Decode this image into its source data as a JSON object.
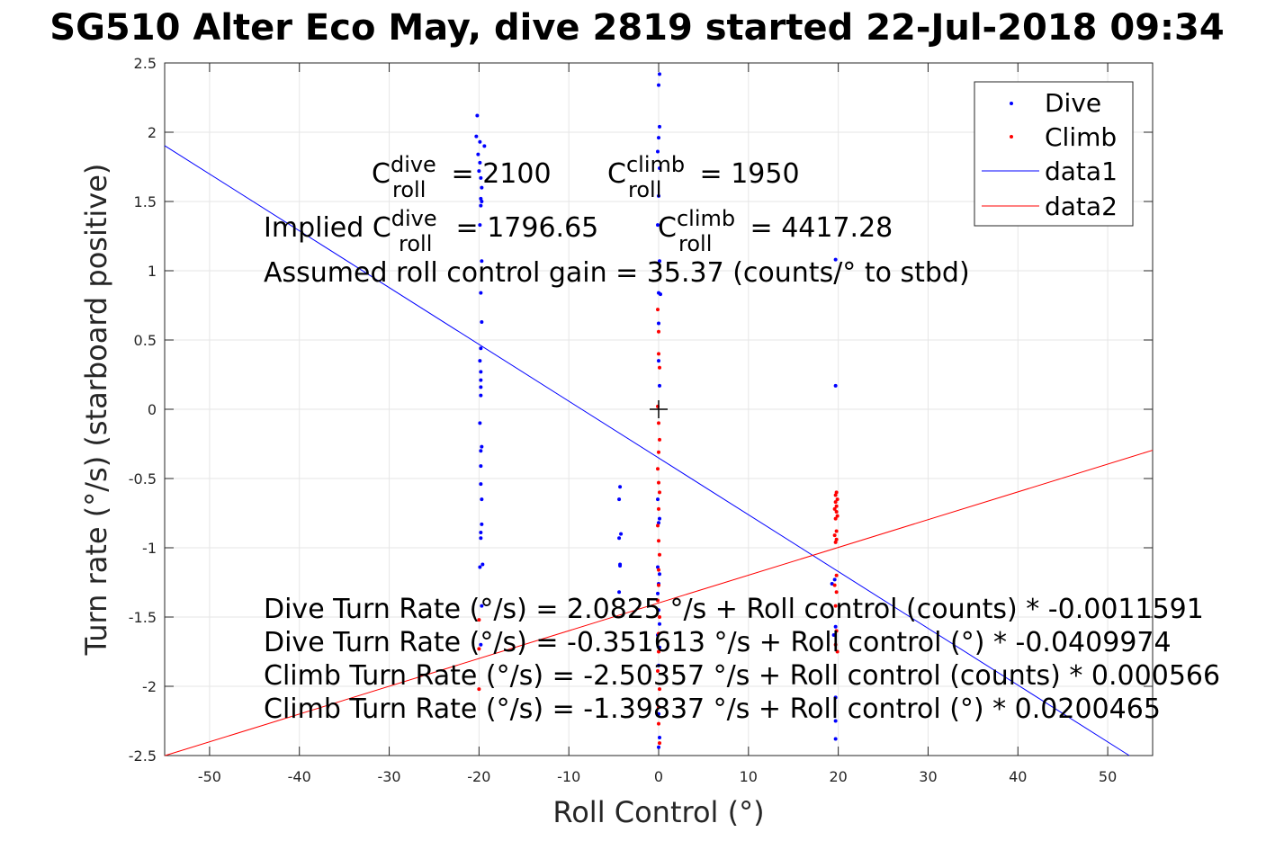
{
  "title": "SG510 Alter Eco May, dive 2819 started 22-Jul-2018 09:34",
  "chart_data": {
    "type": "scatter",
    "xlabel": "Roll Control (°)",
    "ylabel": "Turn rate (°/s) (starboard positive)",
    "xlim": [
      -55,
      55
    ],
    "ylim": [
      -2.5,
      2.5
    ],
    "xticks": [
      "-50",
      "-40",
      "-30",
      "-20",
      "-10",
      "0",
      "10",
      "20",
      "30",
      "40",
      "50"
    ],
    "yticks": [
      "2.5",
      "2",
      "1.5",
      "1",
      "0.5",
      "0",
      "-0.5",
      "-1",
      "-1.5",
      "-2",
      "-2.5"
    ],
    "grid": true,
    "legend_placement": "top-right",
    "legend": [
      "Dive",
      "Climb",
      "data1",
      "data2"
    ],
    "colors": {
      "dive": "#0000ff",
      "climb": "#ff0000",
      "marker": "#000000"
    },
    "series": [
      {
        "name": "Dive",
        "kind": "points",
        "points": [
          [
            -20.2,
            2.12
          ],
          [
            -20.3,
            1.97
          ],
          [
            -19.9,
            1.93
          ],
          [
            -19.4,
            1.9
          ],
          [
            -20.1,
            1.84
          ],
          [
            -19.9,
            1.78
          ],
          [
            -20.0,
            1.72
          ],
          [
            -19.8,
            1.67
          ],
          [
            -19.7,
            1.6
          ],
          [
            -19.8,
            1.52
          ],
          [
            -19.7,
            1.5
          ],
          [
            -19.8,
            1.47
          ],
          [
            -19.9,
            1.33
          ],
          [
            -19.7,
            1.07
          ],
          [
            -19.8,
            0.84
          ],
          [
            -19.7,
            0.63
          ],
          [
            -19.8,
            0.44
          ],
          [
            -19.9,
            0.35
          ],
          [
            -19.8,
            0.27
          ],
          [
            -19.8,
            0.21
          ],
          [
            -19.8,
            0.16
          ],
          [
            -19.8,
            0.1
          ],
          [
            -19.9,
            -0.1
          ],
          [
            -19.7,
            -0.27
          ],
          [
            -19.8,
            -0.3
          ],
          [
            -19.8,
            -0.41
          ],
          [
            -19.8,
            -0.54
          ],
          [
            -19.7,
            -0.65
          ],
          [
            -19.7,
            -0.83
          ],
          [
            -19.8,
            -0.89
          ],
          [
            -19.8,
            -0.93
          ],
          [
            -19.6,
            -1.12
          ],
          [
            -19.9,
            -1.14
          ],
          [
            -19.7,
            -1.42
          ],
          [
            -19.8,
            -1.7
          ],
          [
            -4.3,
            -0.56
          ],
          [
            -4.4,
            -0.65
          ],
          [
            -4.2,
            -0.9
          ],
          [
            -4.4,
            -0.93
          ],
          [
            -4.3,
            -1.12
          ],
          [
            -4.3,
            -1.13
          ],
          [
            -4.4,
            -1.32
          ],
          [
            0.1,
            2.42
          ],
          [
            0.0,
            2.34
          ],
          [
            0.1,
            2.04
          ],
          [
            0.0,
            1.96
          ],
          [
            -0.1,
            1.86
          ],
          [
            0.1,
            1.74
          ],
          [
            0.0,
            1.54
          ],
          [
            -0.1,
            1.33
          ],
          [
            0.1,
            1.07
          ],
          [
            0.0,
            0.84
          ],
          [
            0.2,
            0.83
          ],
          [
            0.0,
            0.62
          ],
          [
            0.0,
            0.35
          ],
          [
            0.1,
            0.17
          ],
          [
            -0.1,
            -0.65
          ],
          [
            0.1,
            -0.79
          ],
          [
            0.0,
            -0.82
          ],
          [
            -0.1,
            -1.14
          ],
          [
            0.1,
            -1.19
          ],
          [
            0.0,
            -1.26
          ],
          [
            -0.1,
            -1.33
          ],
          [
            0.0,
            -1.45
          ],
          [
            0.1,
            -1.55
          ],
          [
            -0.1,
            -1.63
          ],
          [
            0.1,
            -1.72
          ],
          [
            0.0,
            -1.85
          ],
          [
            0.0,
            -2.2
          ],
          [
            0.1,
            -2.37
          ],
          [
            0.0,
            -2.44
          ],
          [
            19.7,
            1.08
          ],
          [
            19.7,
            0.17
          ],
          [
            19.3,
            -1.26
          ],
          [
            19.6,
            -1.23
          ],
          [
            19.7,
            -1.57
          ],
          [
            19.5,
            -1.63
          ],
          [
            19.7,
            -2.08
          ],
          [
            19.7,
            -2.25
          ],
          [
            19.7,
            -2.38
          ]
        ]
      },
      {
        "name": "Climb",
        "kind": "points",
        "points": [
          [
            -20.0,
            -1.52
          ],
          [
            -20.0,
            -1.73
          ],
          [
            -20.0,
            -2.02
          ],
          [
            -0.1,
            0.72
          ],
          [
            0.0,
            0.56
          ],
          [
            0.0,
            0.4
          ],
          [
            0.1,
            0.3
          ],
          [
            -0.1,
            0.02
          ],
          [
            0.0,
            -0.1
          ],
          [
            0.1,
            -0.22
          ],
          [
            0.0,
            -0.31
          ],
          [
            -0.1,
            -0.43
          ],
          [
            0.0,
            -0.53
          ],
          [
            0.1,
            -0.6
          ],
          [
            0.0,
            -0.72
          ],
          [
            -0.1,
            -0.84
          ],
          [
            0.0,
            -0.95
          ],
          [
            0.1,
            -1.05
          ],
          [
            0.0,
            -1.16
          ],
          [
            0.0,
            -1.27
          ],
          [
            -0.1,
            -1.38
          ],
          [
            0.1,
            -1.5
          ],
          [
            0.0,
            -1.62
          ],
          [
            0.0,
            -1.75
          ],
          [
            -0.1,
            -1.89
          ],
          [
            0.1,
            -2.02
          ],
          [
            0.0,
            -2.15
          ],
          [
            0.0,
            -2.27
          ],
          [
            0.1,
            -2.41
          ],
          [
            19.8,
            -0.6
          ],
          [
            19.7,
            -0.62
          ],
          [
            19.9,
            -0.65
          ],
          [
            19.7,
            -0.67
          ],
          [
            19.8,
            -0.7
          ],
          [
            19.6,
            -0.72
          ],
          [
            19.8,
            -0.74
          ],
          [
            19.9,
            -0.77
          ],
          [
            19.7,
            -0.79
          ],
          [
            19.8,
            -0.88
          ],
          [
            19.6,
            -0.91
          ],
          [
            19.8,
            -0.94
          ],
          [
            19.7,
            -0.96
          ],
          [
            19.8,
            -1.2
          ],
          [
            19.6,
            -1.27
          ],
          [
            19.8,
            -1.32
          ],
          [
            19.7,
            -1.42
          ],
          [
            19.8,
            -1.6
          ],
          [
            19.7,
            -1.7
          ],
          [
            19.9,
            -1.75
          ]
        ]
      },
      {
        "name": "data1",
        "kind": "line",
        "intercept": -0.351613,
        "slope": -0.0409974
      },
      {
        "name": "data2",
        "kind": "line",
        "intercept": -1.39837,
        "slope": 0.0200465
      }
    ],
    "annotations": {
      "c_roll_dive": {
        "base": "C",
        "sup": "dive",
        "sub": "roll",
        "value": " = 2100"
      },
      "c_roll_climb": {
        "base": "C",
        "sup": "climb",
        "sub": "roll",
        "value": " = 1950"
      },
      "implied_dive": {
        "prefix": "Implied C",
        "sup": "dive",
        "sub": "roll",
        "value": " = 1796.65"
      },
      "implied_climb": {
        "base": "C",
        "sup": "climb",
        "sub": "roll",
        "value": " = 4417.28"
      },
      "gain": "Assumed roll control gain = 35.37 (counts/° to stbd)",
      "equations": [
        "Dive Turn Rate (°/s) = 2.0825 °/s + Roll control (counts) * -0.0011591",
        "Dive Turn Rate (°/s) = -0.351613 °/s + Roll control (°) * -0.0409974",
        "Climb Turn Rate (°/s) = -2.50357 °/s + Roll control (counts) * 0.000566",
        "Climb Turn Rate (°/s) = -1.39837 °/s + Roll control (°) * 0.0200465"
      ],
      "origin_marker": {
        "x": 0,
        "y": 0,
        "symbol": "+"
      }
    }
  }
}
